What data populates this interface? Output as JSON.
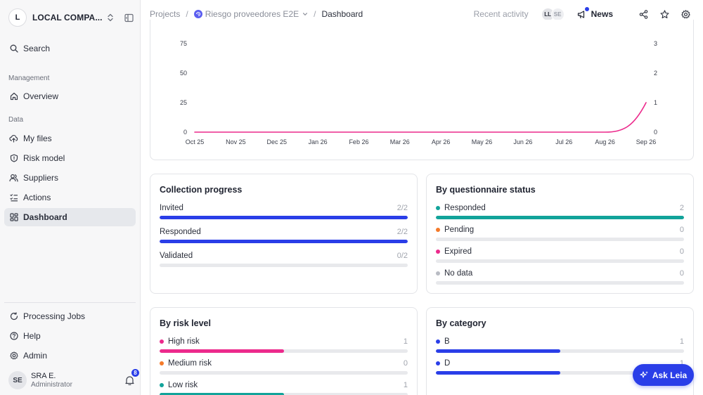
{
  "org": {
    "initial": "L",
    "name": "LOCAL COMPA..."
  },
  "sidebar": {
    "search_label": "Search",
    "management_label": "Management",
    "data_label": "Data",
    "items": [
      {
        "label": "Overview",
        "icon": "home-icon"
      },
      {
        "label": "My files",
        "icon": "cloud-upload-icon"
      },
      {
        "label": "Risk model",
        "icon": "shield-icon"
      },
      {
        "label": "Suppliers",
        "icon": "users-icon"
      },
      {
        "label": "Actions",
        "icon": "checklist-icon"
      },
      {
        "label": "Dashboard",
        "icon": "grid-icon",
        "active": true
      }
    ],
    "bottom_items": [
      {
        "label": "Processing Jobs",
        "icon": "refresh-icon"
      },
      {
        "label": "Help",
        "icon": "help-icon"
      },
      {
        "label": "Admin",
        "icon": "gear-icon"
      }
    ],
    "user": {
      "initials": "SE",
      "name": "SRA E.",
      "role": "Administrator",
      "notifications": "8"
    }
  },
  "header": {
    "breadcrumb": [
      "Projects",
      "Riesgo proveedores E2E",
      "Dashboard"
    ],
    "recent_activity": "Recent activity",
    "avatars": [
      "LL",
      "SE"
    ],
    "news_label": "News"
  },
  "chart_data": {
    "type": "line",
    "x": [
      "Oct 25",
      "Nov 25",
      "Dec 25",
      "Jan 26",
      "Feb 26",
      "Mar 26",
      "Apr 26",
      "May 26",
      "Jun 26",
      "Jul 26",
      "Aug 26",
      "Sep 26"
    ],
    "series": [
      {
        "values": [
          0,
          0,
          0,
          0,
          0,
          0,
          0,
          0,
          0,
          0,
          0,
          1
        ],
        "color": "#ec2a8c",
        "axis": "right"
      }
    ],
    "yticks_left": [
      "75",
      "50",
      "25",
      "0"
    ],
    "yticks_right": [
      "3",
      "2",
      "1",
      "0"
    ],
    "ylim_left": [
      0,
      75
    ],
    "ylim_right": [
      0,
      3
    ]
  },
  "collection_progress": {
    "title": "Collection progress",
    "rows": [
      {
        "label": "Invited",
        "value": "2/2",
        "fraction": 1.0,
        "color": "#2a3ee8"
      },
      {
        "label": "Responded",
        "value": "2/2",
        "fraction": 1.0,
        "color": "#2a3ee8"
      },
      {
        "label": "Validated",
        "value": "0/2",
        "fraction": 0.0,
        "color": "#2a3ee8"
      }
    ]
  },
  "questionnaire_status": {
    "title": "By questionnaire status",
    "rows": [
      {
        "label": "Responded",
        "value": "2",
        "fraction": 1.0,
        "color": "#12a39a"
      },
      {
        "label": "Pending",
        "value": "0",
        "fraction": 0.0,
        "color": "#f47a2a"
      },
      {
        "label": "Expired",
        "value": "0",
        "fraction": 0.0,
        "color": "#ec2a8c"
      },
      {
        "label": "No data",
        "value": "0",
        "fraction": 0.0,
        "color": "#b9bcc4"
      }
    ]
  },
  "risk_level": {
    "title": "By risk level",
    "rows": [
      {
        "label": "High risk",
        "value": "1",
        "fraction": 0.5,
        "color": "#ec2a8c"
      },
      {
        "label": "Medium risk",
        "value": "0",
        "fraction": 0.0,
        "color": "#f47a2a"
      },
      {
        "label": "Low risk",
        "value": "1",
        "fraction": 0.5,
        "color": "#12a39a"
      }
    ]
  },
  "category": {
    "title": "By category",
    "rows": [
      {
        "label": "B",
        "value": "1",
        "fraction": 0.5,
        "color": "#2a3ee8"
      },
      {
        "label": "D",
        "value": "1",
        "fraction": 0.5,
        "color": "#2a3ee8"
      }
    ]
  },
  "ask_button": {
    "label": "Ask Leia"
  }
}
